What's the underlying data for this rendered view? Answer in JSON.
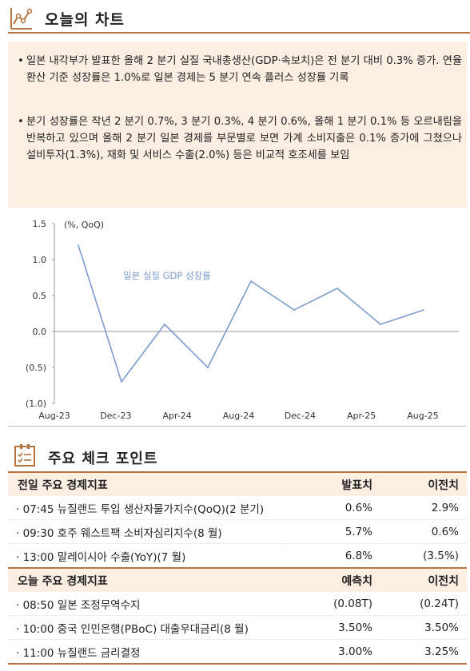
{
  "header": {
    "title": "오늘의 차트"
  },
  "summary": {
    "bullets": [
      "일본 내각부가 발표한 올해 2 분기 실질 국내총생산(GDP·속보치)은 전 분기 대비 0.3% 증가. 연율 환산 기준 성장률은 1.0%로 일본 경제는 5 분기 연속 플러스 성장률 기록",
      "분기 성장률은 작년 2 분기 0.7%, 3 분기 0.3%, 4 분기 0.6%, 올해 1 분기 0.1% 등 오르내림을 반복하고 있으며 올해 2 분기 일본 경제를 부문별로 보면 가계 소비지출은 0.1% 증가에 그쳤으나 설비투자(1.3%), 재화 및 서비스 수출(2.0%) 등은 비교적 호조세를 보임"
    ]
  },
  "chart_data": {
    "type": "line",
    "unit_label": "(%, QoQ)",
    "series": [
      {
        "name": "일본 실질 GDP 성장률",
        "color": "#7b9ccd",
        "values": [
          1.2,
          -0.7,
          0.1,
          -0.5,
          0.7,
          0.3,
          0.6,
          0.1,
          0.3
        ]
      }
    ],
    "x": [
      "Aug-23",
      "Nov-23",
      "Feb-24",
      "May-24",
      "Aug-24",
      "Nov-24",
      "Feb-25",
      "May-25",
      "Aug-25"
    ],
    "x_tick_labels": [
      "Aug-23",
      "Dec-23",
      "Apr-24",
      "Aug-24",
      "Dec-24",
      "Apr-25",
      "Aug-25"
    ],
    "y_tick_labels": [
      "1.5",
      "1.0",
      "0.5",
      "0.0",
      "(0.5)",
      "(1.0)"
    ],
    "y_ticks": [
      1.5,
      1.0,
      0.5,
      0.0,
      -0.5,
      -1.0
    ],
    "ylim": [
      -1.0,
      1.5
    ],
    "grid": false
  },
  "section2": {
    "title": "주요 체크 포인트"
  },
  "prev_day": {
    "headers": [
      "전일 주요 경제지표",
      "발표치",
      "이전치"
    ],
    "rows": [
      [
        "· 07:45 뉴질랜드 투입 생산자물가지수(QoQ)(2 분기)",
        "0.6%",
        "2.9%"
      ],
      [
        "· 09:30 호주 웨스트팩 소비자심리지수(8 월)",
        "5.7%",
        "0.6%"
      ],
      [
        "· 13:00 말레이시아 수출(YoY)(7 월)",
        "6.8%",
        "(3.5%)"
      ]
    ]
  },
  "today": {
    "headers": [
      "오늘 주요 경제지표",
      "예측치",
      "이전치"
    ],
    "rows": [
      [
        "· 08:50 일본 조정무역수지",
        "(0.08T)",
        "(0.24T)"
      ],
      [
        "· 10:00 중국 인민은행(PBoC) 대출우대금리(8 월)",
        "3.50%",
        "3.50%"
      ],
      [
        "· 11:00 뉴질랜드 금리결정",
        "3.00%",
        "3.25%"
      ]
    ]
  },
  "colors": {
    "accent": "#b5733f",
    "panel": "#fbeee2",
    "line": "#7b9ccd"
  }
}
